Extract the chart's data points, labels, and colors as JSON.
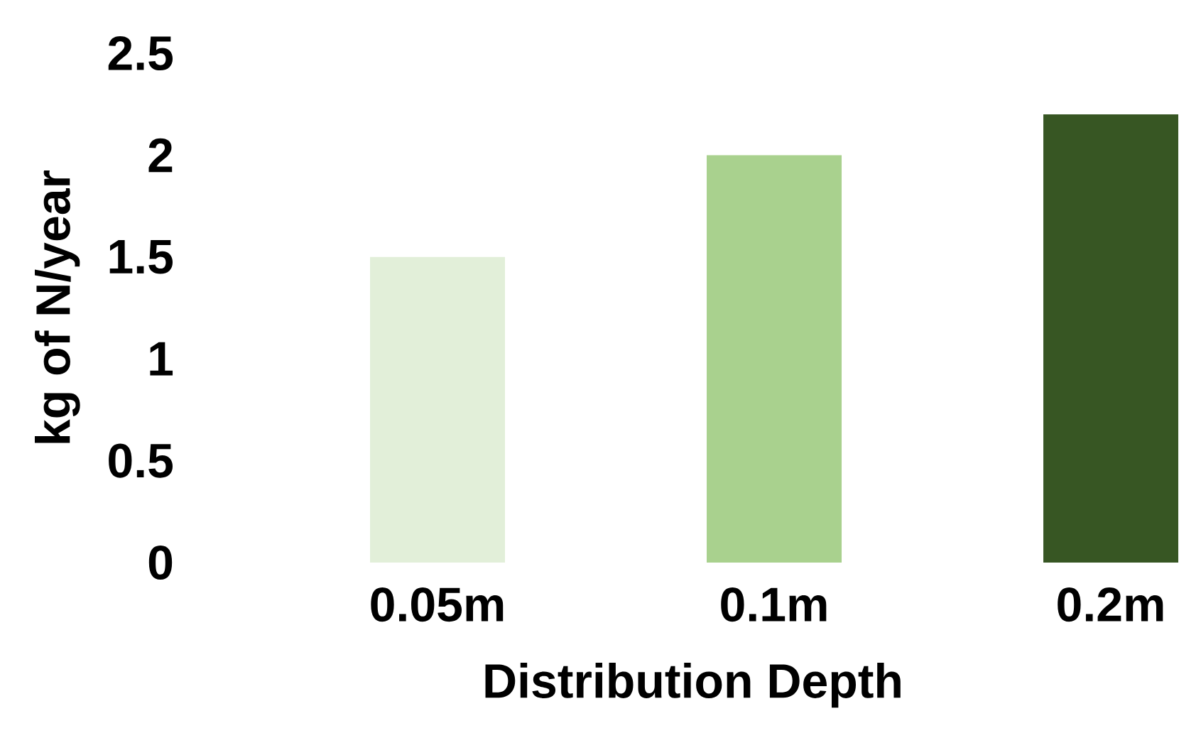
{
  "chart_data": {
    "type": "bar",
    "categories": [
      "0.05m",
      "0.1m",
      "0.2m"
    ],
    "values": [
      1.5,
      2.0,
      2.2
    ],
    "colors": [
      "#e2efd9",
      "#a9d18e",
      "#375623"
    ],
    "ylim": [
      0,
      2.5
    ],
    "yticks": [
      0,
      0.5,
      1,
      1.5,
      2,
      2.5
    ],
    "xlabel": "Distribution Depth",
    "ylabel": "kg of N/year"
  }
}
